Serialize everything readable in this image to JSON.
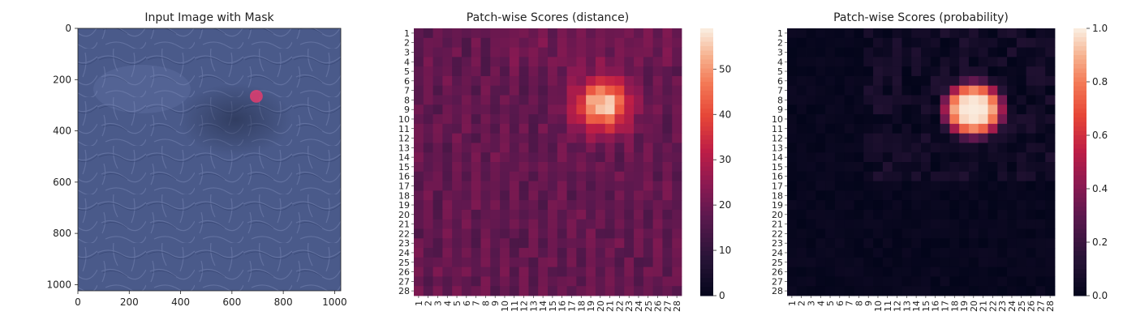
{
  "charts": [
    {
      "type": "image",
      "title": "Input Image with Mask",
      "x_ticks": [
        "0",
        "200",
        "400",
        "600",
        "800",
        "1000"
      ],
      "y_ticks": [
        "0",
        "200",
        "400",
        "600",
        "800",
        "1000"
      ],
      "xlim": [
        0,
        1024
      ],
      "ylim": [
        0,
        1024
      ],
      "mask": {
        "center_x": 695,
        "center_y": 265,
        "radius": 25,
        "color": "#e23c6e"
      },
      "colors": {
        "base": "#4a5a8a",
        "light": "#6b7aa8",
        "dark": "#303f6c"
      }
    },
    {
      "type": "heatmap",
      "title": "Patch-wise Scores (distance)",
      "colorbar": {
        "min": 0,
        "max": 59,
        "ticks": [
          "0",
          "10",
          "20",
          "30",
          "40",
          "50"
        ],
        "tick_values": [
          0,
          10,
          20,
          30,
          40,
          50
        ]
      },
      "rows": 28,
      "cols": 28,
      "background_value": 21,
      "hotspot": {
        "row": 8,
        "col": 20,
        "peak": 59
      }
    },
    {
      "type": "heatmap",
      "title": "Patch-wise Scores (probability)",
      "colorbar": {
        "min": 0,
        "max": 1,
        "ticks": [
          "0.0",
          "0.2",
          "0.4",
          "0.6",
          "0.8",
          "1.0"
        ],
        "tick_values": [
          0,
          0.2,
          0.4,
          0.6,
          0.8,
          1.0
        ]
      },
      "rows": 28,
      "cols": 28,
      "background_value": 0.01,
      "hotspot": {
        "row": 8,
        "col": 20,
        "peak": 1.0
      }
    }
  ],
  "chart_data": [
    {
      "type": "heatmap",
      "title": "Patch-wise Scores (distance)",
      "x_labels": [
        "1",
        "2",
        "3",
        "4",
        "5",
        "6",
        "7",
        "8",
        "9",
        "10",
        "11",
        "12",
        "13",
        "14",
        "15",
        "16",
        "17",
        "18",
        "19",
        "20",
        "21",
        "22",
        "23",
        "24",
        "25",
        "26",
        "27",
        "28"
      ],
      "y_labels": [
        "1",
        "2",
        "3",
        "4",
        "5",
        "6",
        "7",
        "8",
        "9",
        "10",
        "11",
        "12",
        "13",
        "14",
        "15",
        "16",
        "17",
        "18",
        "19",
        "20",
        "21",
        "22",
        "23",
        "24",
        "25",
        "26",
        "27",
        "28"
      ],
      "vmin": 0,
      "vmax": 59,
      "description_values": {
        "background": 21,
        "peak": 59,
        "peak_row": 8,
        "peak_col": 20
      }
    },
    {
      "type": "heatmap",
      "title": "Patch-wise Scores (probability)",
      "x_labels": [
        "1",
        "2",
        "3",
        "4",
        "5",
        "6",
        "7",
        "8",
        "9",
        "10",
        "11",
        "12",
        "13",
        "14",
        "15",
        "16",
        "17",
        "18",
        "19",
        "20",
        "21",
        "22",
        "23",
        "24",
        "25",
        "26",
        "27",
        "28"
      ],
      "y_labels": [
        "1",
        "2",
        "3",
        "4",
        "5",
        "6",
        "7",
        "8",
        "9",
        "10",
        "11",
        "12",
        "13",
        "14",
        "15",
        "16",
        "17",
        "18",
        "19",
        "20",
        "21",
        "22",
        "23",
        "24",
        "25",
        "26",
        "27",
        "28"
      ],
      "vmin": 0,
      "vmax": 1,
      "description_values": {
        "background": 0.01,
        "peak": 1.0,
        "peak_row": 8,
        "peak_col": 20
      }
    }
  ]
}
